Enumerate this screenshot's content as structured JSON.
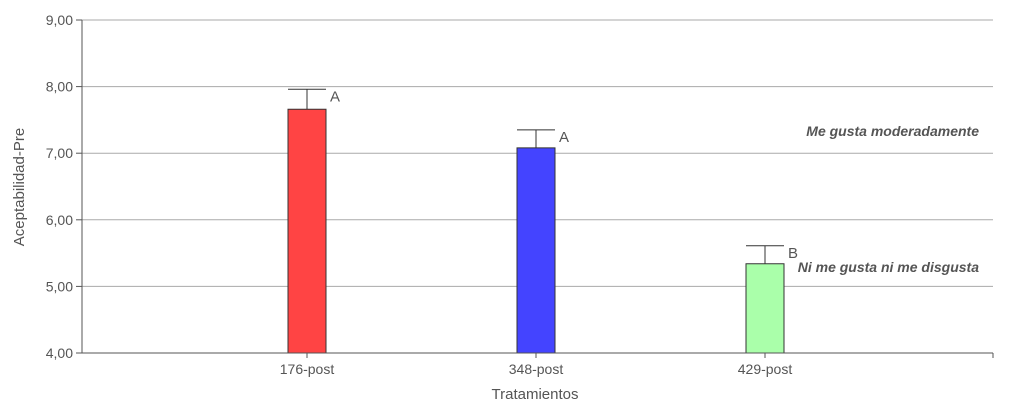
{
  "chart_data": {
    "type": "bar",
    "categories": [
      "176-post",
      "348-post",
      "429-post"
    ],
    "values": [
      7.66,
      7.08,
      5.34
    ],
    "errors": [
      0.3,
      0.27,
      0.27
    ],
    "significance": [
      "A",
      "A",
      "B"
    ],
    "colors": [
      "#ff4444",
      "#4444ff",
      "#aaffaa"
    ],
    "xlabel": "Tratamientos",
    "ylabel": "Aceptabilidad-Pre",
    "ylim": [
      4,
      9
    ],
    "yticks": [
      "4,00",
      "5,00",
      "6,00",
      "7,00",
      "8,00",
      "9,00"
    ],
    "grid": true,
    "annotations": [
      {
        "text": "Me gusta moderadamente",
        "y": 7.33
      },
      {
        "text": "Ni me gusta ni me disgusta",
        "y": 5.29
      }
    ]
  }
}
